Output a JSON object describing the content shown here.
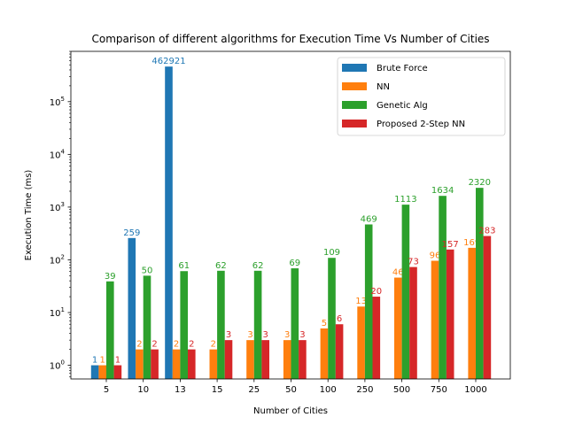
{
  "chart_data": {
    "type": "bar",
    "title": "Comparison of different algorithms for Execution Time Vs Number of Cities",
    "xlabel": "Number of Cities",
    "ylabel": "Execution Time (ms)",
    "yscale": "log",
    "ylim": [
      0.55,
      900000
    ],
    "legend_position": "top-right",
    "categories": [
      "5",
      "10",
      "13",
      "15",
      "25",
      "50",
      "100",
      "250",
      "500",
      "750",
      "1000"
    ],
    "series": [
      {
        "name": "Brute Force",
        "color": "#1f77b4",
        "values": [
          1,
          259,
          462921,
          null,
          null,
          null,
          null,
          null,
          null,
          null,
          null
        ]
      },
      {
        "name": "NN",
        "color": "#ff7f0e",
        "values": [
          1,
          2,
          2,
          2,
          3,
          3,
          5,
          13,
          46,
          96,
          169
        ]
      },
      {
        "name": "Genetic Alg",
        "color": "#2ca02c",
        "values": [
          39,
          50,
          61,
          62,
          62,
          69,
          109,
          469,
          1113,
          1634,
          2320
        ]
      },
      {
        "name": "Proposed 2-Step NN",
        "color": "#d62728",
        "values": [
          1,
          2,
          2,
          3,
          3,
          3,
          6,
          20,
          73,
          157,
          283
        ]
      }
    ],
    "yticks": [
      {
        "value": 1,
        "base": "10",
        "exp": "0"
      },
      {
        "value": 10,
        "base": "10",
        "exp": "1"
      },
      {
        "value": 100,
        "base": "10",
        "exp": "2"
      },
      {
        "value": 1000,
        "base": "10",
        "exp": "3"
      },
      {
        "value": 10000,
        "base": "10",
        "exp": "4"
      },
      {
        "value": 100000,
        "base": "10",
        "exp": "5"
      }
    ]
  }
}
